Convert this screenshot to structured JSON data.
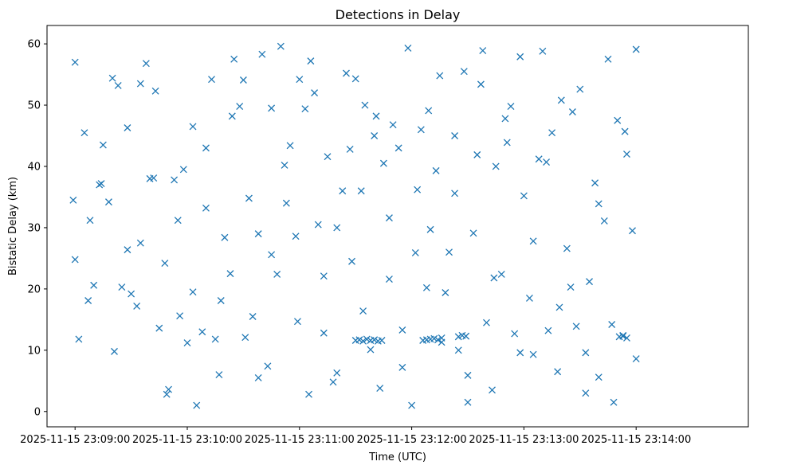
{
  "chart_data": {
    "type": "scatter",
    "title": "Detections in Delay",
    "xlabel": "Time (UTC)",
    "ylabel": "Bistatic Delay (km)",
    "x_type": "time",
    "xlim": [
      "2025-11-15 23:08:45",
      "2025-11-15 23:15:00"
    ],
    "ylim": [
      -2.5,
      63
    ],
    "x_ticks": [
      "2025-11-15 23:09:00",
      "2025-11-15 23:10:00",
      "2025-11-15 23:11:00",
      "2025-11-15 23:12:00",
      "2025-11-15 23:13:00",
      "2025-11-15 23:14:00"
    ],
    "y_ticks": [
      0,
      10,
      20,
      30,
      40,
      50,
      60
    ],
    "grid": false,
    "legend": null,
    "marker": "x",
    "color": "#1f77b4",
    "series": [
      {
        "x": [
          "2025-11-15 23:08:59",
          "2025-11-15 23:09:00",
          "2025-11-15 23:09:02",
          "2025-11-15 23:09:05",
          "2025-11-15 23:09:08",
          "2025-11-15 23:09:10",
          "2025-11-15 23:09:13",
          "2025-11-15 23:09:15",
          "2025-11-15 23:09:18",
          "2025-11-15 23:09:20",
          "2025-11-15 23:09:23",
          "2025-11-15 23:09:25",
          "2025-11-15 23:09:28",
          "2025-11-15 23:09:30",
          "2025-11-15 23:09:33",
          "2025-11-15 23:09:35",
          "2025-11-15 23:09:38",
          "2025-11-15 23:09:40",
          "2025-11-15 23:09:43",
          "2025-11-15 23:09:45",
          "2025-11-15 23:09:48",
          "2025-11-15 23:09:50",
          "2025-11-15 23:09:53",
          "2025-11-15 23:09:55",
          "2025-11-15 23:09:58",
          "2025-11-15 23:10:00",
          "2025-11-15 23:10:03",
          "2025-11-15 23:10:05",
          "2025-11-15 23:10:08",
          "2025-11-15 23:10:10",
          "2025-11-15 23:10:13",
          "2025-11-15 23:10:15",
          "2025-11-15 23:10:18",
          "2025-11-15 23:10:20",
          "2025-11-15 23:10:23",
          "2025-11-15 23:10:25",
          "2025-11-15 23:10:28",
          "2025-11-15 23:10:30",
          "2025-11-15 23:10:33",
          "2025-11-15 23:10:35",
          "2025-11-15 23:10:38",
          "2025-11-15 23:10:40",
          "2025-11-15 23:10:43",
          "2025-11-15 23:10:45",
          "2025-11-15 23:10:48",
          "2025-11-15 23:10:50",
          "2025-11-15 23:10:53",
          "2025-11-15 23:10:55",
          "2025-11-15 23:10:58",
          "2025-11-15 23:11:00",
          "2025-11-15 23:11:03",
          "2025-11-15 23:11:05",
          "2025-11-15 23:11:08",
          "2025-11-15 23:11:10",
          "2025-11-15 23:11:13",
          "2025-11-15 23:11:15",
          "2025-11-15 23:11:18",
          "2025-11-15 23:11:20",
          "2025-11-15 23:11:23",
          "2025-11-15 23:11:25",
          "2025-11-15 23:11:28",
          "2025-11-15 23:11:30",
          "2025-11-15 23:11:33",
          "2025-11-15 23:11:35",
          "2025-11-15 23:11:38",
          "2025-11-15 23:11:40",
          "2025-11-15 23:11:43",
          "2025-11-15 23:11:45",
          "2025-11-15 23:11:48",
          "2025-11-15 23:11:50",
          "2025-11-15 23:11:53",
          "2025-11-15 23:11:55",
          "2025-11-15 23:11:58",
          "2025-11-15 23:12:00",
          "2025-11-15 23:12:03",
          "2025-11-15 23:12:05",
          "2025-11-15 23:12:08",
          "2025-11-15 23:12:10",
          "2025-11-15 23:12:13",
          "2025-11-15 23:12:15",
          "2025-11-15 23:12:18",
          "2025-11-15 23:12:20",
          "2025-11-15 23:12:23",
          "2025-11-15 23:12:25",
          "2025-11-15 23:12:28",
          "2025-11-15 23:12:30",
          "2025-11-15 23:12:33",
          "2025-11-15 23:12:35",
          "2025-11-15 23:12:38",
          "2025-11-15 23:12:40",
          "2025-11-15 23:12:43",
          "2025-11-15 23:12:45",
          "2025-11-15 23:12:48",
          "2025-11-15 23:12:50",
          "2025-11-15 23:12:53",
          "2025-11-15 23:12:55",
          "2025-11-15 23:12:58",
          "2025-11-15 23:13:00",
          "2025-11-15 23:13:03",
          "2025-11-15 23:13:05",
          "2025-11-15 23:13:08",
          "2025-11-15 23:13:10",
          "2025-11-15 23:13:13",
          "2025-11-15 23:13:15",
          "2025-11-15 23:13:18",
          "2025-11-15 23:13:20",
          "2025-11-15 23:13:23",
          "2025-11-15 23:13:25",
          "2025-11-15 23:13:28",
          "2025-11-15 23:13:30",
          "2025-11-15 23:13:33",
          "2025-11-15 23:13:35",
          "2025-11-15 23:13:38",
          "2025-11-15 23:13:40",
          "2025-11-15 23:13:43",
          "2025-11-15 23:13:45",
          "2025-11-15 23:13:48",
          "2025-11-15 23:13:50",
          "2025-11-15 23:13:53",
          "2025-11-15 23:13:55",
          "2025-11-15 23:13:58",
          "2025-11-15 23:14:00",
          "2025-11-15 23:09:00",
          "2025-11-15 23:09:07",
          "2025-11-15 23:09:14",
          "2025-11-15 23:09:21",
          "2025-11-15 23:09:28",
          "2025-11-15 23:09:35",
          "2025-11-15 23:09:42",
          "2025-11-15 23:09:49",
          "2025-11-15 23:09:56",
          "2025-11-15 23:10:03",
          "2025-11-15 23:10:10",
          "2025-11-15 23:10:17",
          "2025-11-15 23:10:24",
          "2025-11-15 23:10:31",
          "2025-11-15 23:10:38",
          "2025-11-15 23:10:45",
          "2025-11-15 23:10:52",
          "2025-11-15 23:10:59",
          "2025-11-15 23:11:06",
          "2025-11-15 23:11:13",
          "2025-11-15 23:11:20",
          "2025-11-15 23:11:27",
          "2025-11-15 23:11:34",
          "2025-11-15 23:11:41",
          "2025-11-15 23:11:48",
          "2025-11-15 23:11:55",
          "2025-11-15 23:12:02",
          "2025-11-15 23:12:09",
          "2025-11-15 23:12:16",
          "2025-11-15 23:12:23",
          "2025-11-15 23:12:30",
          "2025-11-15 23:12:37",
          "2025-11-15 23:12:44",
          "2025-11-15 23:12:51",
          "2025-11-15 23:12:58",
          "2025-11-15 23:13:05",
          "2025-11-15 23:13:12",
          "2025-11-15 23:13:19",
          "2025-11-15 23:13:26",
          "2025-11-15 23:13:33",
          "2025-11-15 23:13:40",
          "2025-11-15 23:13:47",
          "2025-11-15 23:13:54",
          "2025-11-15 23:14:00",
          "2025-11-15 23:11:30",
          "2025-11-15 23:11:32",
          "2025-11-15 23:11:34",
          "2025-11-15 23:11:36",
          "2025-11-15 23:11:38",
          "2025-11-15 23:11:40",
          "2025-11-15 23:11:42",
          "2025-11-15 23:11:44",
          "2025-11-15 23:12:06",
          "2025-11-15 23:12:08",
          "2025-11-15 23:12:10",
          "2025-11-15 23:12:12",
          "2025-11-15 23:12:14",
          "2025-11-15 23:12:16",
          "2025-11-15 23:12:25",
          "2025-11-15 23:12:27",
          "2025-11-15 23:12:29",
          "2025-11-15 23:13:51",
          "2025-11-15 23:13:53",
          "2025-11-15 23:13:55"
        ],
        "y": [
          34.5,
          57.0,
          11.8,
          45.5,
          31.2,
          20.6,
          37.0,
          43.5,
          34.2,
          54.4,
          53.2,
          20.3,
          26.4,
          19.2,
          17.2,
          53.5,
          56.8,
          38.0,
          52.3,
          13.6,
          24.2,
          3.6,
          37.8,
          31.2,
          39.5,
          11.2,
          46.5,
          1.0,
          13.0,
          43.0,
          54.2,
          11.8,
          18.1,
          28.4,
          22.5,
          57.5,
          49.8,
          54.1,
          34.8,
          15.5,
          29.0,
          58.3,
          7.4,
          49.5,
          22.4,
          59.6,
          34.0,
          43.4,
          28.6,
          54.2,
          49.4,
          2.8,
          52.0,
          30.5,
          12.8,
          41.6,
          4.8,
          30.0,
          36.0,
          55.2,
          24.5,
          54.3,
          36.0,
          50.0,
          10.1,
          45.0,
          3.8,
          40.5,
          21.6,
          46.8,
          43.0,
          13.3,
          59.3,
          1.0,
          36.2,
          46.0,
          20.2,
          29.7,
          39.3,
          54.8,
          19.4,
          26.0,
          45.0,
          10.0,
          55.5,
          1.5,
          29.1,
          41.9,
          58.9,
          14.5,
          3.5,
          40.0,
          22.4,
          47.8,
          49.8,
          12.7,
          57.9,
          35.2,
          18.5,
          9.3,
          41.2,
          58.8,
          13.2,
          45.5,
          6.5,
          50.8,
          26.6,
          20.3,
          13.9,
          52.6,
          9.6,
          21.2,
          37.3,
          5.6,
          31.1,
          57.5,
          1.5,
          47.5,
          12.3,
          42.0,
          29.5,
          59.1,
          24.8,
          18.1,
          37.2,
          9.8,
          46.3,
          27.5,
          38.1,
          2.8,
          15.6,
          19.5,
          33.2,
          6.0,
          48.2,
          12.1,
          5.5,
          25.6,
          40.2,
          14.7,
          57.2,
          22.1,
          6.3,
          42.8,
          16.4,
          48.2,
          31.6,
          7.2,
          25.9,
          49.1,
          11.3,
          35.6,
          5.9,
          53.4,
          21.8,
          43.9,
          9.6,
          27.8,
          40.7,
          17.0,
          48.9,
          3.0,
          33.9,
          14.2,
          45.7,
          8.6,
          11.6,
          11.7,
          11.5,
          11.8,
          11.6,
          11.7,
          11.5,
          11.6,
          11.6,
          11.7,
          11.8,
          11.9,
          11.7,
          12.0,
          12.2,
          12.4,
          12.3,
          12.2,
          12.4,
          12.0
        ]
      }
    ]
  }
}
